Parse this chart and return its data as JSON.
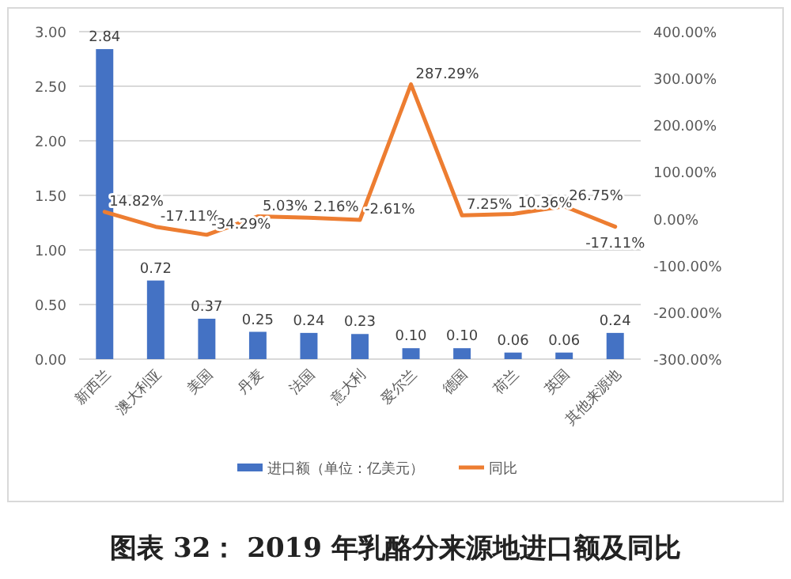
{
  "chart_data": {
    "type": "bar",
    "title": "图表 32： 2019 年乳酪分来源地进口额及同比",
    "categories": [
      "新西兰",
      "澳大利亚",
      "美国",
      "丹麦",
      "法国",
      "意大利",
      "爱尔兰",
      "德国",
      "荷兰",
      "英国",
      "其他来源地"
    ],
    "series": [
      {
        "name": "进口额（单位：亿美元）",
        "color": "#4472c4",
        "values": [
          2.84,
          0.72,
          0.37,
          0.25,
          0.24,
          0.23,
          0.1,
          0.1,
          0.06,
          0.06,
          0.24
        ],
        "value_labels": [
          "2.84",
          "0.72",
          "0.37",
          "0.25",
          "0.24",
          "0.23",
          "0.10",
          "0.10",
          "0.06",
          "0.06",
          "0.24"
        ]
      },
      {
        "name": "同比",
        "type": "line",
        "axis": "y2",
        "color": "#ed7d31",
        "values": [
          14.82,
          -17.11,
          -34.29,
          5.03,
          2.16,
          -2.61,
          287.29,
          7.25,
          10.36,
          26.75,
          -17.11
        ],
        "value_labels": [
          "14.82%",
          "-17.11%",
          "-34.29%",
          "5.03%",
          "2.16%",
          "-2.61%",
          "287.29%",
          "7.25%",
          "10.36%",
          "26.75%",
          "-17.11%"
        ]
      }
    ],
    "ylim": [
      0,
      3
    ],
    "yticks": [
      {
        "value": 0,
        "label": "0.00"
      },
      {
        "value": 0.5,
        "label": "0.50"
      },
      {
        "value": 1,
        "label": "1.00"
      },
      {
        "value": 1.5,
        "label": "1.50"
      },
      {
        "value": 2,
        "label": "2.00"
      },
      {
        "value": 2.5,
        "label": "2.50"
      },
      {
        "value": 3,
        "label": "3.00"
      }
    ],
    "y2lim": [
      -300,
      400
    ],
    "y2ticks": [
      {
        "value": -300,
        "label": "-300.00%"
      },
      {
        "value": -200,
        "label": "-200.00%"
      },
      {
        "value": -100,
        "label": "-100.00%"
      },
      {
        "value": 0,
        "label": "0.00%"
      },
      {
        "value": 100,
        "label": "100.00%"
      },
      {
        "value": 200,
        "label": "200.00%"
      },
      {
        "value": 300,
        "label": "300.00%"
      },
      {
        "value": 400,
        "label": "400.00%"
      }
    ],
    "grid": "y",
    "legend": "bottom",
    "marker": "none",
    "line_style": "solid"
  }
}
